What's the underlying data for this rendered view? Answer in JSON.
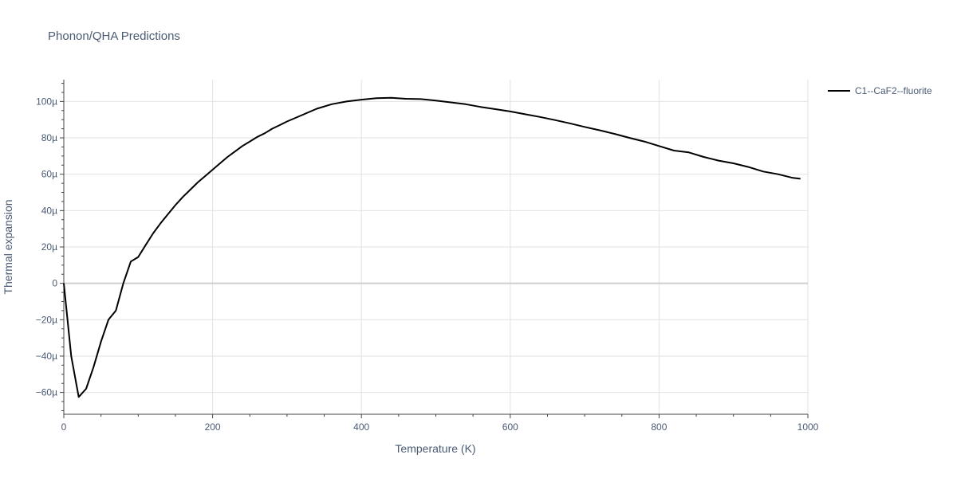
{
  "chart_data": {
    "type": "line",
    "title": "Phonon/QHA Predictions",
    "xlabel": "Temperature (K)",
    "ylabel": "Thermal expansion",
    "xlim": [
      0,
      1000
    ],
    "ylim": [
      -72,
      112
    ],
    "y_unit_suffix": "µ",
    "x_ticks": [
      0,
      200,
      400,
      600,
      800,
      1000
    ],
    "y_ticks": [
      -60,
      -40,
      -20,
      0,
      20,
      40,
      60,
      80,
      100
    ],
    "grid": true,
    "legend_position": "top-right",
    "series": [
      {
        "name": "C1--CaF2--fluorite",
        "color": "#000000",
        "x": [
          0,
          10,
          20,
          30,
          40,
          50,
          60,
          70,
          80,
          90,
          100,
          110,
          120,
          130,
          140,
          150,
          160,
          170,
          180,
          190,
          200,
          210,
          220,
          230,
          240,
          250,
          260,
          270,
          280,
          290,
          300,
          320,
          340,
          360,
          380,
          400,
          420,
          440,
          460,
          480,
          500,
          520,
          540,
          560,
          580,
          600,
          620,
          640,
          660,
          680,
          700,
          720,
          740,
          760,
          780,
          800,
          820,
          840,
          860,
          880,
          900,
          920,
          940,
          960,
          980,
          990
        ],
        "y": [
          0,
          -40,
          -62.5,
          -58,
          -46,
          -32,
          -20,
          -15,
          0,
          12,
          14.5,
          21,
          27.5,
          33,
          38,
          43,
          47.5,
          51.5,
          55.5,
          59,
          62.5,
          66,
          69.5,
          72.5,
          75.5,
          78,
          80.5,
          82.5,
          85,
          87,
          89,
          92.5,
          96,
          98.5,
          100,
          101,
          101.8,
          102,
          101.5,
          101.3,
          100.5,
          99.5,
          98.5,
          97,
          95.8,
          94.5,
          93,
          91.5,
          89.8,
          88,
          86,
          84.2,
          82.2,
          80,
          78,
          75.5,
          73,
          72,
          69.5,
          67.5,
          66,
          64,
          61.5,
          60,
          58,
          57.5
        ]
      }
    ]
  }
}
